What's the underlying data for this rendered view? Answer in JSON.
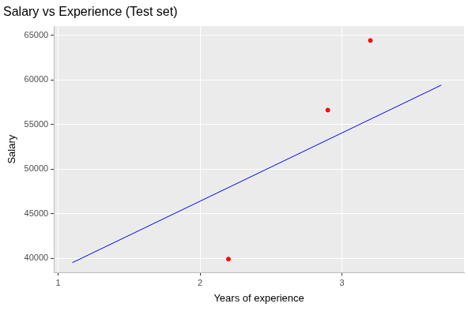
{
  "chart_data": {
    "type": "scatter",
    "title": "Salary vs Experience (Test set)",
    "x_label": "Years of experience",
    "y_label": "Salary",
    "xlim": [
      0.97,
      3.86
    ],
    "ylim": [
      38400,
      66000
    ],
    "xticks": [
      1,
      2,
      3
    ],
    "yticks": [
      40000,
      45000,
      50000,
      55000,
      60000,
      65000
    ],
    "grid": true,
    "series": [
      {
        "type": "scatter",
        "color": "#ff0000",
        "marker": "circle",
        "x": [
          2.2,
          2.9,
          3.2
        ],
        "values": [
          39900,
          56600,
          64400
        ]
      },
      {
        "type": "line",
        "color": "#0000ff",
        "line_style": "solid",
        "x": [
          1.1,
          3.7
        ],
        "values": [
          39500,
          59400
        ]
      }
    ]
  }
}
